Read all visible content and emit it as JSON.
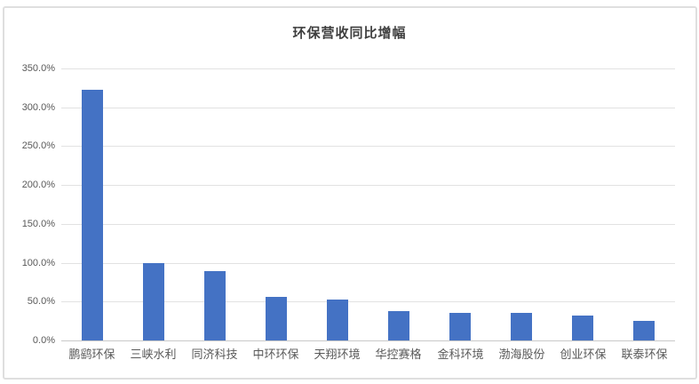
{
  "chart_data": {
    "type": "bar",
    "title": "环保营收同比增幅",
    "categories": [
      "鹏鹞环保",
      "三峡水利",
      "同济科技",
      "中环环保",
      "天翔环境",
      "华控赛格",
      "金科环境",
      "渤海股份",
      "创业环保",
      "联泰环保"
    ],
    "values": [
      322,
      100,
      89,
      56,
      53,
      38,
      36,
      35,
      32,
      25
    ],
    "unit": "%",
    "xlabel": "",
    "ylabel": "",
    "ylim": [
      0,
      350
    ],
    "ytick_step": 50,
    "ytick_labels": [
      "0.0%",
      "50.0%",
      "100.0%",
      "150.0%",
      "200.0%",
      "250.0%",
      "300.0%",
      "350.0%"
    ],
    "grid": true,
    "legend_position": "none",
    "colors": {
      "bar": "#4472C4",
      "gridline": "#E2E2E2",
      "axis_line": "#C9C9C9",
      "tick_label": "#595959",
      "title": "#3F3F3F",
      "panel_border": "#DFDFDF",
      "background": "#FFFFFF"
    }
  }
}
